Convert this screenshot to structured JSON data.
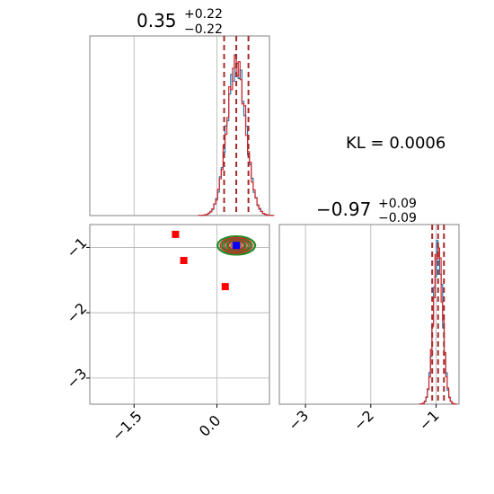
{
  "chart_data": {
    "type": "corner",
    "colors": {
      "hist_blue": "#1f77b4",
      "hist_red": "#d62728",
      "quantile_line": "#a52a2a",
      "contour_green": "#228b22",
      "contour_red": "#d62728",
      "point_red": "#ff0000",
      "point_blue": "#0000ff"
    },
    "kl_text": "KL = 0.0006",
    "params": [
      {
        "median": "0.35",
        "upper": "+0.22",
        "lower": "−0.22",
        "range": [
          -2.3,
          0.95
        ],
        "quantiles": [
          0.13,
          0.35,
          0.57
        ],
        "mean": 0.35,
        "sd": 0.17,
        "ticks": [
          {
            "value": -1.5,
            "label": "−1.5"
          },
          {
            "value": 0.0,
            "label": "0.0"
          }
        ]
      },
      {
        "median": "−0.97",
        "upper": "+0.09",
        "lower": "−0.09",
        "range": [
          -3.4,
          -0.65
        ],
        "quantiles": [
          -1.06,
          -0.97,
          -0.88
        ],
        "mean": -0.97,
        "sd": 0.07,
        "ticks": [
          {
            "value": -3,
            "label": "−3"
          },
          {
            "value": -2,
            "label": "−2"
          },
          {
            "value": -1,
            "label": "−1"
          }
        ]
      }
    ],
    "red_points": [
      [
        -0.75,
        -0.8
      ],
      [
        -0.6,
        -1.2
      ],
      [
        0.15,
        -1.6
      ]
    ],
    "blue_point": [
      0.35,
      -0.97
    ]
  }
}
